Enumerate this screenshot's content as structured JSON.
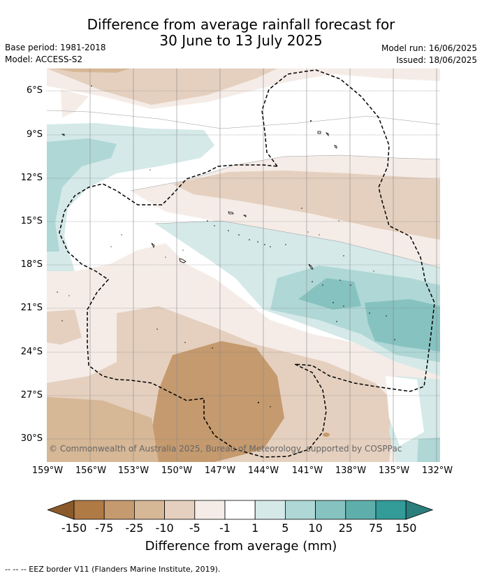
{
  "title_line1": "Difference from average rainfall forecast for",
  "title_line2": "30 June to 13 July 2025",
  "base_period": "Base period: 1981-2018",
  "model": "Model: ACCESS-S2",
  "model_run": "Model run: 16/06/2025",
  "issued": "Issued: 18/06/2025",
  "copyright": "© Commonwealth of Australia 2025, Bureau of Meteorology, supported by COSPPac",
  "lat_labels": [
    "6°S",
    "9°S",
    "12°S",
    "15°S",
    "18°S",
    "21°S",
    "24°S",
    "27°S",
    "30°S"
  ],
  "lon_labels": [
    "159°W",
    "156°W",
    "153°W",
    "150°W",
    "147°W",
    "144°W",
    "141°W",
    "138°W",
    "135°W",
    "132°W"
  ],
  "colorbar": {
    "ticks": [
      "-150",
      "-75",
      "-25",
      "-10",
      "-5",
      "-1",
      "1",
      "5",
      "10",
      "25",
      "75",
      "150"
    ],
    "colors": [
      "#8a5a2b",
      "#b07a44",
      "#c49a6e",
      "#d6b796",
      "#e5d0bf",
      "#f5ece7",
      "#ffffff",
      "#d4e9e8",
      "#aed7d6",
      "#85c2c0",
      "#5eaeac",
      "#339b98",
      "#2a7f7d"
    ],
    "title": "Difference from average (mm)"
  },
  "eez_legend": "--  --  -- EEZ border V11 (Flanders Marine Institute, 2019)."
}
